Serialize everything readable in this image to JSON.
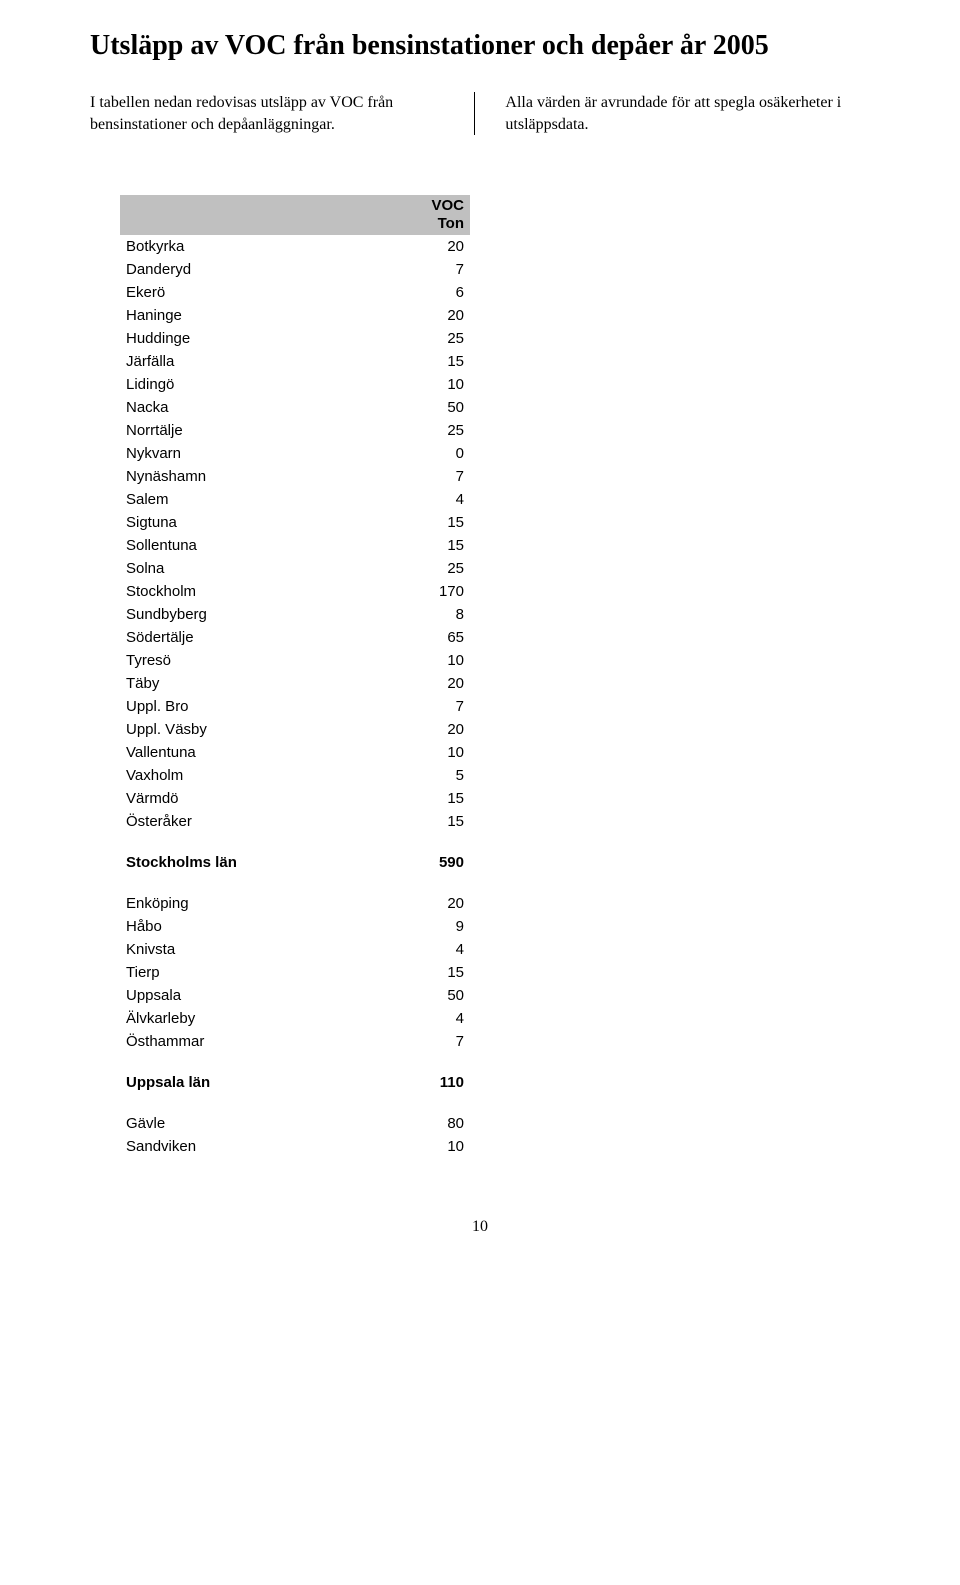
{
  "title": "Utsläpp av VOC från bensinstationer och depåer år 2005",
  "intro_left": "I tabellen nedan redovisas utsläpp av VOC från bensinstationer och depåanläggningar.",
  "intro_right": "Alla värden är avrundade för att spegla osäkerheter i utsläppsdata.",
  "header_line1": "VOC",
  "header_line2": "Ton",
  "rows": [
    {
      "name": "Botkyrka",
      "val": "20"
    },
    {
      "name": "Danderyd",
      "val": "7"
    },
    {
      "name": "Ekerö",
      "val": "6"
    },
    {
      "name": "Haninge",
      "val": "20"
    },
    {
      "name": "Huddinge",
      "val": "25"
    },
    {
      "name": "Järfälla",
      "val": "15"
    },
    {
      "name": "Lidingö",
      "val": "10"
    },
    {
      "name": "Nacka",
      "val": "50"
    },
    {
      "name": "Norrtälje",
      "val": "25"
    },
    {
      "name": "Nykvarn",
      "val": "0"
    },
    {
      "name": "Nynäshamn",
      "val": "7"
    },
    {
      "name": "Salem",
      "val": "4"
    },
    {
      "name": "Sigtuna",
      "val": "15"
    },
    {
      "name": "Sollentuna",
      "val": "15"
    },
    {
      "name": "Solna",
      "val": "25"
    },
    {
      "name": "Stockholm",
      "val": "170"
    },
    {
      "name": "Sundbyberg",
      "val": "8"
    },
    {
      "name": "Södertälje",
      "val": "65"
    },
    {
      "name": "Tyresö",
      "val": "10"
    },
    {
      "name": "Täby",
      "val": "20"
    },
    {
      "name": "Uppl. Bro",
      "val": "7"
    },
    {
      "name": "Uppl. Väsby",
      "val": "20"
    },
    {
      "name": "Vallentuna",
      "val": "10"
    },
    {
      "name": "Vaxholm",
      "val": "5"
    },
    {
      "name": "Värmdö",
      "val": "15"
    },
    {
      "name": "Österåker",
      "val": "15"
    }
  ],
  "sum1": {
    "name": "Stockholms län",
    "val": "590"
  },
  "rows2": [
    {
      "name": "Enköping",
      "val": "20"
    },
    {
      "name": "Håbo",
      "val": "9"
    },
    {
      "name": "Knivsta",
      "val": "4"
    },
    {
      "name": "Tierp",
      "val": "15"
    },
    {
      "name": "Uppsala",
      "val": "50"
    },
    {
      "name": "Älvkarleby",
      "val": "4"
    },
    {
      "name": "Östhammar",
      "val": "7"
    }
  ],
  "sum2": {
    "name": "Uppsala län",
    "val": "110"
  },
  "rows3": [
    {
      "name": "Gävle",
      "val": "80"
    },
    {
      "name": "Sandviken",
      "val": "10"
    }
  ],
  "pagenum": "10"
}
